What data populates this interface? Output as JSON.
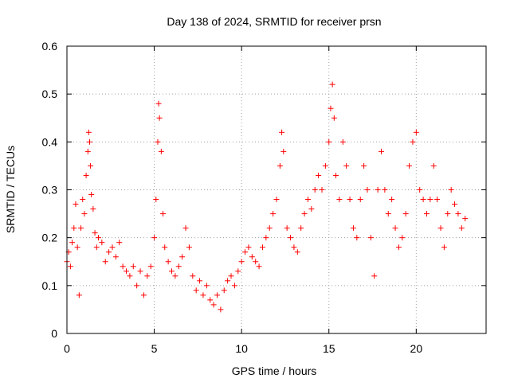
{
  "chart_data": {
    "type": "scatter",
    "title": "Day 138 of 2024, SRMTID for receiver prsn",
    "xlabel": "GPS time / hours",
    "ylabel": "SRMTID / TECUs",
    "xlim": [
      0,
      24
    ],
    "ylim": [
      0,
      0.6
    ],
    "x_ticks": [
      "0",
      "5",
      "10",
      "15",
      "20"
    ],
    "x_tick_values": [
      0,
      5,
      10,
      15,
      20
    ],
    "y_ticks": [
      "0",
      "0.1",
      "0.2",
      "0.3",
      "0.4",
      "0.5",
      "0.6"
    ],
    "y_tick_values": [
      0,
      0.1,
      0.2,
      0.3,
      0.4,
      0.5,
      0.6
    ],
    "grid": true,
    "marker": "+",
    "marker_color": "#ff0000",
    "series": [
      {
        "name": "SRMTID",
        "points": [
          [
            0.0,
            0.15
          ],
          [
            0.1,
            0.17
          ],
          [
            0.2,
            0.14
          ],
          [
            0.3,
            0.19
          ],
          [
            0.4,
            0.22
          ],
          [
            0.5,
            0.27
          ],
          [
            0.6,
            0.18
          ],
          [
            0.7,
            0.08
          ],
          [
            0.8,
            0.22
          ],
          [
            0.9,
            0.28
          ],
          [
            1.0,
            0.25
          ],
          [
            1.1,
            0.33
          ],
          [
            1.2,
            0.38
          ],
          [
            1.25,
            0.42
          ],
          [
            1.3,
            0.4
          ],
          [
            1.35,
            0.35
          ],
          [
            1.4,
            0.29
          ],
          [
            1.5,
            0.26
          ],
          [
            1.6,
            0.21
          ],
          [
            1.7,
            0.18
          ],
          [
            1.8,
            0.2
          ],
          [
            2.0,
            0.19
          ],
          [
            2.2,
            0.15
          ],
          [
            2.4,
            0.17
          ],
          [
            2.6,
            0.18
          ],
          [
            2.8,
            0.16
          ],
          [
            3.0,
            0.19
          ],
          [
            3.2,
            0.14
          ],
          [
            3.4,
            0.13
          ],
          [
            3.6,
            0.12
          ],
          [
            3.8,
            0.14
          ],
          [
            4.0,
            0.1
          ],
          [
            4.2,
            0.13
          ],
          [
            4.4,
            0.08
          ],
          [
            4.6,
            0.12
          ],
          [
            4.8,
            0.14
          ],
          [
            5.0,
            0.2
          ],
          [
            5.1,
            0.28
          ],
          [
            5.2,
            0.4
          ],
          [
            5.25,
            0.48
          ],
          [
            5.3,
            0.45
          ],
          [
            5.4,
            0.38
          ],
          [
            5.5,
            0.25
          ],
          [
            5.6,
            0.18
          ],
          [
            5.8,
            0.15
          ],
          [
            6.0,
            0.13
          ],
          [
            6.2,
            0.12
          ],
          [
            6.4,
            0.14
          ],
          [
            6.6,
            0.16
          ],
          [
            6.8,
            0.22
          ],
          [
            7.0,
            0.18
          ],
          [
            7.2,
            0.12
          ],
          [
            7.4,
            0.09
          ],
          [
            7.6,
            0.11
          ],
          [
            7.8,
            0.08
          ],
          [
            8.0,
            0.1
          ],
          [
            8.2,
            0.07
          ],
          [
            8.4,
            0.06
          ],
          [
            8.6,
            0.08
          ],
          [
            8.8,
            0.05
          ],
          [
            9.0,
            0.09
          ],
          [
            9.2,
            0.11
          ],
          [
            9.4,
            0.12
          ],
          [
            9.6,
            0.1
          ],
          [
            9.8,
            0.13
          ],
          [
            10.0,
            0.15
          ],
          [
            10.2,
            0.17
          ],
          [
            10.4,
            0.18
          ],
          [
            10.6,
            0.16
          ],
          [
            10.8,
            0.15
          ],
          [
            11.0,
            0.14
          ],
          [
            11.2,
            0.18
          ],
          [
            11.4,
            0.2
          ],
          [
            11.6,
            0.22
          ],
          [
            11.8,
            0.25
          ],
          [
            12.0,
            0.28
          ],
          [
            12.2,
            0.35
          ],
          [
            12.3,
            0.42
          ],
          [
            12.4,
            0.38
          ],
          [
            12.6,
            0.22
          ],
          [
            12.8,
            0.2
          ],
          [
            13.0,
            0.18
          ],
          [
            13.2,
            0.17
          ],
          [
            13.4,
            0.22
          ],
          [
            13.6,
            0.25
          ],
          [
            13.8,
            0.28
          ],
          [
            14.0,
            0.26
          ],
          [
            14.2,
            0.3
          ],
          [
            14.4,
            0.33
          ],
          [
            14.6,
            0.3
          ],
          [
            14.8,
            0.35
          ],
          [
            15.0,
            0.4
          ],
          [
            15.1,
            0.47
          ],
          [
            15.2,
            0.52
          ],
          [
            15.3,
            0.45
          ],
          [
            15.4,
            0.33
          ],
          [
            15.6,
            0.28
          ],
          [
            15.8,
            0.4
          ],
          [
            16.0,
            0.35
          ],
          [
            16.2,
            0.28
          ],
          [
            16.4,
            0.22
          ],
          [
            16.6,
            0.2
          ],
          [
            16.8,
            0.28
          ],
          [
            17.0,
            0.35
          ],
          [
            17.2,
            0.3
          ],
          [
            17.4,
            0.2
          ],
          [
            17.6,
            0.12
          ],
          [
            17.8,
            0.3
          ],
          [
            18.0,
            0.38
          ],
          [
            18.2,
            0.3
          ],
          [
            18.4,
            0.25
          ],
          [
            18.6,
            0.28
          ],
          [
            18.8,
            0.22
          ],
          [
            19.0,
            0.18
          ],
          [
            19.2,
            0.2
          ],
          [
            19.4,
            0.25
          ],
          [
            19.6,
            0.35
          ],
          [
            19.8,
            0.4
          ],
          [
            20.0,
            0.42
          ],
          [
            20.2,
            0.3
          ],
          [
            20.4,
            0.28
          ],
          [
            20.6,
            0.25
          ],
          [
            20.8,
            0.28
          ],
          [
            21.0,
            0.35
          ],
          [
            21.2,
            0.28
          ],
          [
            21.4,
            0.22
          ],
          [
            21.6,
            0.18
          ],
          [
            21.8,
            0.25
          ],
          [
            22.0,
            0.3
          ],
          [
            22.2,
            0.27
          ],
          [
            22.4,
            0.25
          ],
          [
            22.6,
            0.22
          ],
          [
            22.8,
            0.24
          ]
        ]
      }
    ]
  }
}
